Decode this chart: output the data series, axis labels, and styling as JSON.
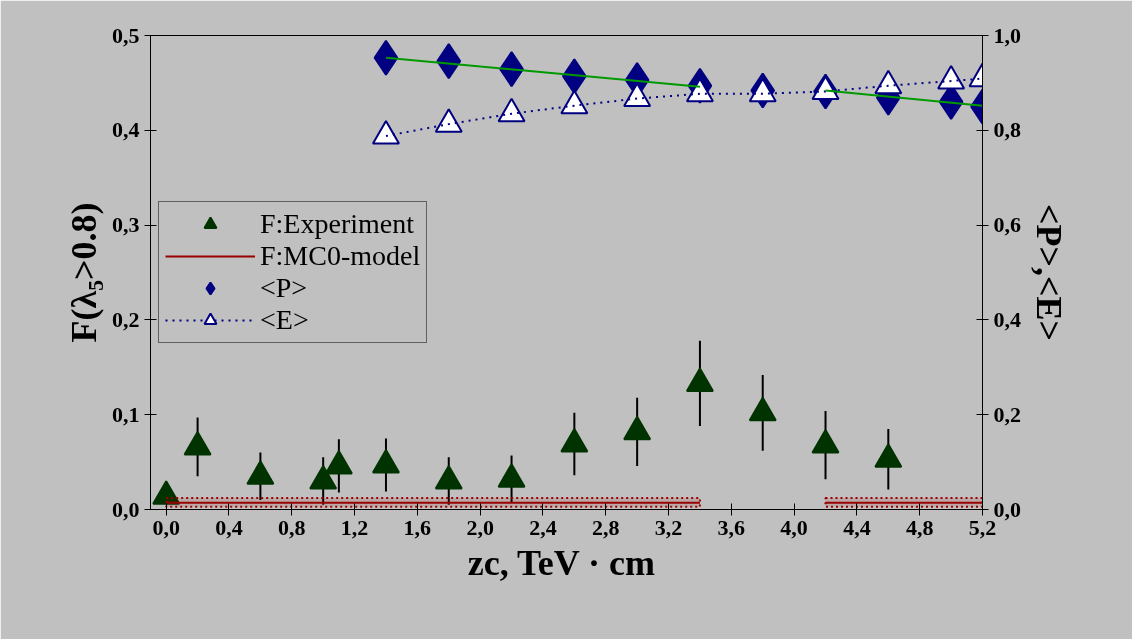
{
  "chart_data": {
    "type": "scatter",
    "xlabel": "zc,  TeV · cm",
    "ylabel": "F(λ₅>0.8)",
    "y2label": "<P>,<E>",
    "xlim": [
      -0.1,
      5.2
    ],
    "xticks": [
      {
        "value": 0,
        "label": "0,0"
      },
      {
        "value": 0.4,
        "label": "0,4"
      },
      {
        "value": 0.8,
        "label": "0,8"
      },
      {
        "value": 1.2,
        "label": "1,2"
      },
      {
        "value": 1.6,
        "label": "1,6"
      },
      {
        "value": 2.0,
        "label": "2,0"
      },
      {
        "value": 2.4,
        "label": "2,4"
      },
      {
        "value": 2.8,
        "label": "2,8"
      },
      {
        "value": 3.2,
        "label": "3,2"
      },
      {
        "value": 3.6,
        "label": "3,6"
      },
      {
        "value": 4.0,
        "label": "4,0"
      },
      {
        "value": 4.4,
        "label": "4,4"
      },
      {
        "value": 4.8,
        "label": "4,8"
      },
      {
        "value": 5.2,
        "label": "5,2"
      }
    ],
    "ylim": [
      0,
      0.5
    ],
    "yticks": [
      {
        "value": 0,
        "label": "0,0"
      },
      {
        "value": 0.1,
        "label": "0,1"
      },
      {
        "value": 0.2,
        "label": "0,2"
      },
      {
        "value": 0.3,
        "label": "0,3"
      },
      {
        "value": 0.4,
        "label": "0,4"
      },
      {
        "value": 0.5,
        "label": "0,5"
      }
    ],
    "y2lim": [
      0,
      1.0
    ],
    "y2ticks": [
      {
        "value": 0,
        "label": "0,0"
      },
      {
        "value": 0.2,
        "label": "0,2"
      },
      {
        "value": 0.4,
        "label": "0,4"
      },
      {
        "value": 0.6,
        "label": "0,6"
      },
      {
        "value": 0.8,
        "label": "0,8"
      },
      {
        "value": 1.0,
        "label": "1,0"
      }
    ],
    "grid": false,
    "legend": "left",
    "series": [
      {
        "name": "F:Experiment",
        "type": "scatter",
        "marker": "triangle",
        "color": "#003300",
        "x": [
          0,
          0.2,
          0.6,
          1.0,
          1.1,
          1.4,
          1.8,
          2.2,
          2.6,
          3.0,
          3.4,
          3.8,
          4.2,
          4.6
        ],
        "values": [
          0.014,
          0.066,
          0.035,
          0.03,
          0.046,
          0.047,
          0.03,
          0.032,
          0.069,
          0.082,
          0.133,
          0.102,
          0.068,
          0.053
        ],
        "errors": [
          null,
          0.031,
          0.025,
          0.025,
          0.028,
          0.028,
          0.025,
          0.025,
          0.033,
          0.036,
          0.045,
          0.04,
          0.036,
          0.032
        ]
      },
      {
        "name": "F:MC0-model",
        "type": "line",
        "marker": "none",
        "line_style": "solid",
        "color": "#990000",
        "x": [
          0,
          3.4,
          3.8,
          4.2,
          5.2
        ],
        "values": [
          0.007,
          0.007,
          null,
          0.007,
          0.007
        ],
        "lower": [
          0.003,
          0.003,
          null,
          0.003,
          0.003
        ],
        "upper": [
          0.012,
          0.012,
          null,
          0.012,
          0.012
        ]
      },
      {
        "name": "<P>",
        "type": "scatter",
        "marker": "diamond",
        "color": "#000080",
        "axis": "y2",
        "x": [
          1.4,
          1.8,
          2.2,
          2.6,
          3.0,
          3.4,
          3.8,
          4.2,
          4.6,
          5.0,
          5.2
        ],
        "values": [
          0.953,
          0.946,
          0.929,
          0.914,
          0.906,
          0.894,
          0.884,
          0.882,
          0.869,
          0.86,
          0.85
        ]
      },
      {
        "name": "<E>",
        "type": "line",
        "marker": "triangle",
        "line_style": "dotted",
        "color": "#000080",
        "axis": "y2",
        "x": [
          1.4,
          1.8,
          2.2,
          2.6,
          3.0,
          3.4,
          3.8,
          4.2,
          4.6,
          5.0,
          5.2
        ],
        "values": [
          0.788,
          0.813,
          0.835,
          0.852,
          0.867,
          0.877,
          0.877,
          0.882,
          0.894,
          0.904,
          0.909
        ]
      },
      {
        "type": "line",
        "marker": "none",
        "line_style": "solid",
        "color": "#009900",
        "axis": "y2",
        "x": [
          1.4,
          3.4,
          3.8,
          4.2,
          5.2
        ],
        "values": [
          0.953,
          0.892,
          null,
          0.884,
          0.852
        ]
      }
    ]
  }
}
